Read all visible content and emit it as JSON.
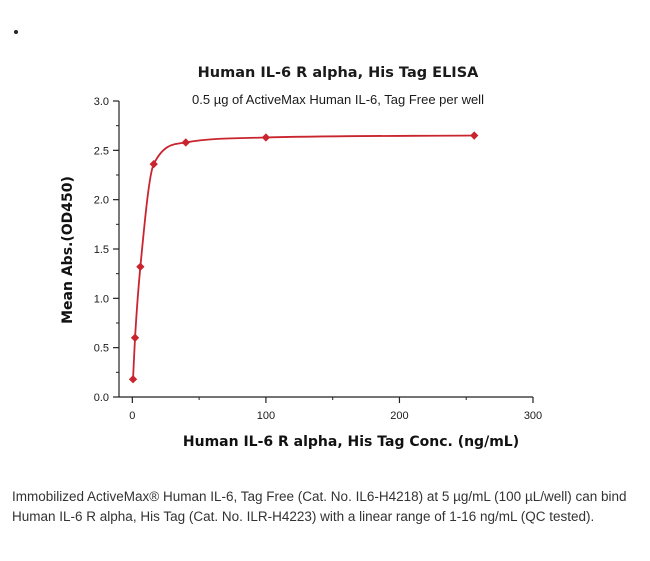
{
  "chart_data": {
    "type": "line",
    "title": "Human IL-6 R alpha, His Tag ELISA",
    "subtitle": "0.5 µg of ActiveMax Human IL-6, Tag Free per well",
    "xlabel": "Human IL-6 R alpha, His Tag Conc. (ng/mL)",
    "ylabel": "Mean Abs.(OD450)",
    "xlim": [
      -10,
      300
    ],
    "ylim": [
      0,
      3.0
    ],
    "x_ticks": [
      "0",
      "100",
      "200",
      "300"
    ],
    "y_ticks": [
      "0.0",
      "0.5",
      "1.0",
      "1.5",
      "2.0",
      "2.5",
      "3.0"
    ],
    "x_tick_values": [
      0,
      100,
      200,
      300
    ],
    "y_tick_values": [
      0,
      0.5,
      1.0,
      1.5,
      2.0,
      2.5,
      3.0
    ],
    "color": "#c9252f",
    "grid": false,
    "series": [
      {
        "x": [
          0.5,
          2,
          6,
          16,
          40,
          100,
          256
        ],
        "y": [
          0.18,
          0.6,
          1.32,
          2.36,
          2.58,
          2.63,
          2.65
        ]
      }
    ]
  },
  "caption": "Immobilized ActiveMax® Human IL-6, Tag Free (Cat. No. IL6-H4218) at 5 µg/mL (100 µL/well) can bind Human IL-6 R alpha, His Tag (Cat. No. ILR-H4223) with a linear range of 1-16 ng/mL (QC tested)."
}
